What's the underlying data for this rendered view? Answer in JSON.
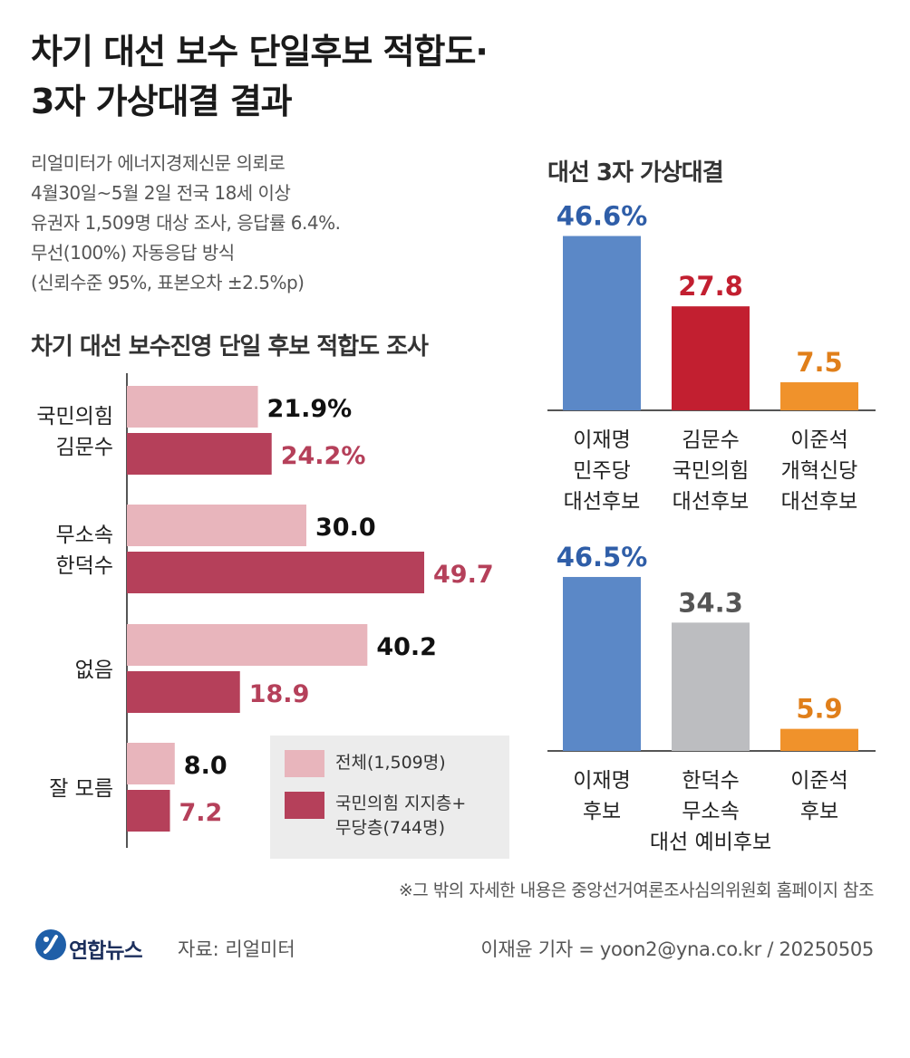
{
  "header": {
    "title_line1": "차기 대선 보수 단일후보 적합도·",
    "title_line2": "3자 가상대결 결과"
  },
  "description": [
    "리얼미터가 에너지경제신문 의뢰로",
    "4월30일~5월 2일 전국 18세 이상",
    "유권자 1,509명 대상 조사, 응답률 6.4%.",
    "무선(100%) 자동응답 방식",
    "(신뢰수준 95%, 표본오차 ±2.5%p)"
  ],
  "colors": {
    "total": "#e8b5bc",
    "supporters": "#b5405a",
    "supporters_label": "#b5405a",
    "lee": "#5b88c7",
    "lee_label": "#2f5ea8",
    "kim": "#c21f30",
    "kim_label": "#c21f30",
    "han": "#bcbdc0",
    "han_label": "#555555",
    "lee_js": "#f0922b",
    "lee_js_label": "#e07f1a"
  },
  "chart_data": [
    {
      "type": "bar",
      "orientation": "horizontal",
      "title": "차기 대선 보수진영 단일 후보 적합도 조사",
      "categories": [
        [
          "국민의힘",
          "김문수"
        ],
        [
          "무소속",
          "한덕수"
        ],
        [
          "없음"
        ],
        [
          "잘 모름"
        ]
      ],
      "series": [
        {
          "name": "전체(1,509명)",
          "values": [
            21.9,
            30.0,
            40.2,
            8.0
          ],
          "labels": [
            "21.9%",
            "30.0",
            "40.2",
            "8.0"
          ],
          "color": "#e8b5bc",
          "label_color": "#111111"
        },
        {
          "name": "국민의힘 지지층+무당층(744명)",
          "values": [
            24.2,
            49.7,
            18.9,
            7.2
          ],
          "labels": [
            "24.2%",
            "49.7",
            "18.9",
            "7.2"
          ],
          "color": "#b5405a",
          "label_color": "#b5405a"
        }
      ],
      "legend": {
        "placement": "bottom-right",
        "entries": [
          [
            "전체(1,509명)"
          ],
          [
            "국민의힘 지지층+",
            "무당층(744명)"
          ]
        ]
      }
    },
    {
      "type": "bar",
      "title": "대선 3자 가상대결",
      "categories": [
        [
          "이재명",
          "민주당",
          "대선후보"
        ],
        [
          "김문수",
          "국민의힘",
          "대선후보"
        ],
        [
          "이준석",
          "개혁신당",
          "대선후보"
        ]
      ],
      "values": [
        46.6,
        27.8,
        7.5
      ],
      "labels": [
        "46.6%",
        "27.8",
        "7.5"
      ],
      "colors": [
        "#5b88c7",
        "#c21f30",
        "#f0922b"
      ],
      "label_colors": [
        "#2f5ea8",
        "#c21f30",
        "#e07f1a"
      ]
    },
    {
      "type": "bar",
      "categories": [
        [
          "이재명",
          "후보"
        ],
        [
          "한덕수",
          "무소속",
          "대선 예비후보"
        ],
        [
          "이준석",
          "후보"
        ]
      ],
      "values": [
        46.5,
        34.3,
        5.9
      ],
      "labels": [
        "46.5%",
        "34.3",
        "5.9"
      ],
      "colors": [
        "#5b88c7",
        "#bcbdc0",
        "#f0922b"
      ],
      "label_colors": [
        "#2f5ea8",
        "#555555",
        "#e07f1a"
      ]
    }
  ],
  "footnote": "※그 밖의 자세한 내용은 중앙선거여론조사심의위원회 홈페이지 참조",
  "footer": {
    "logo_text": "연합뉴스",
    "source": "자료: 리얼미터",
    "credit": "이재윤 기자 = yoon2@yna.co.kr / 20250505"
  }
}
